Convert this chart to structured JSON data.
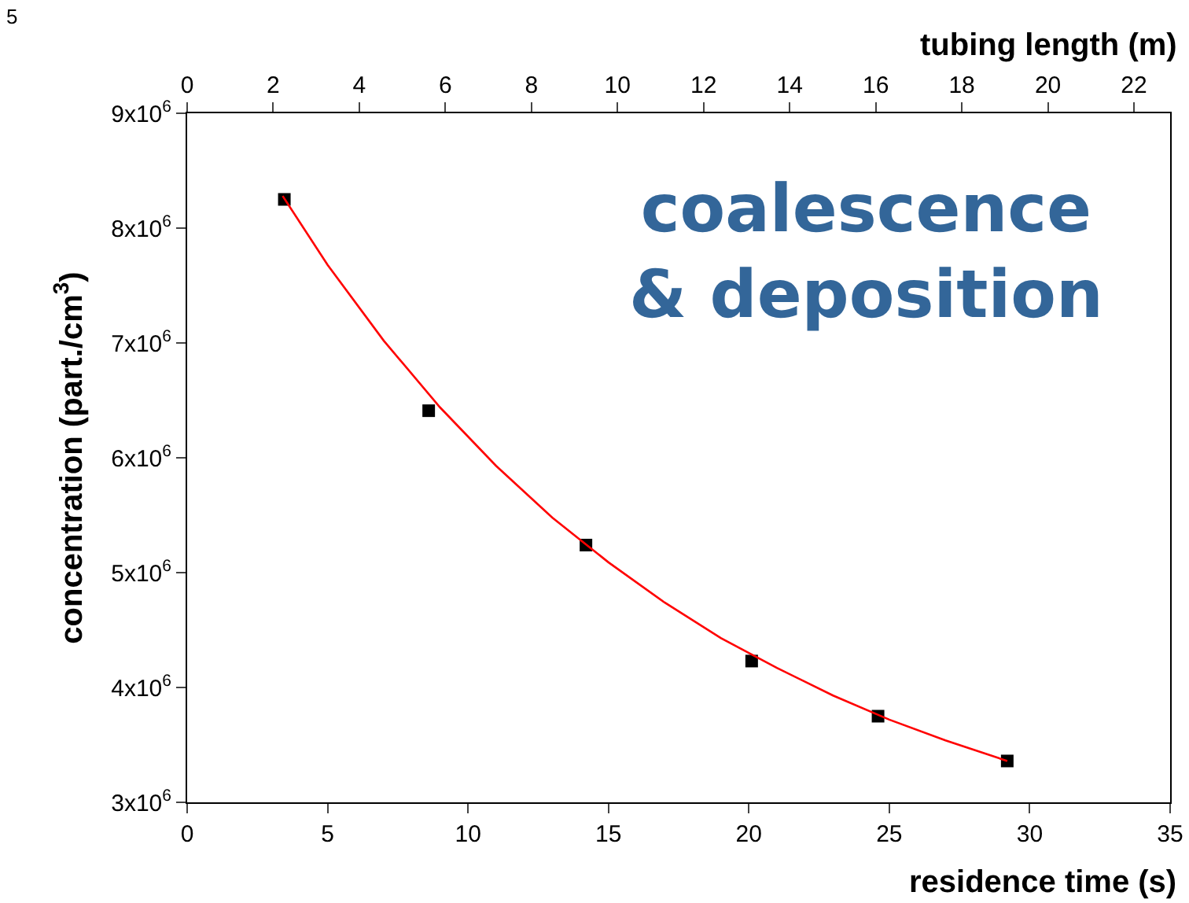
{
  "chart_data": {
    "type": "scatter",
    "xlabel": "residence time (s)",
    "ylabel": "concentration (part./cm$^{3}$)",
    "x2label": "tubing length (m)",
    "xlim": [
      0,
      35
    ],
    "xticks": [
      0,
      5,
      10,
      15,
      20,
      25,
      30,
      35
    ],
    "x2lim": [
      0,
      22.84
    ],
    "x2ticks": [
      0,
      2,
      4,
      6,
      8,
      10,
      12,
      14,
      16,
      18,
      20,
      22
    ],
    "ylim": [
      3000000,
      9000000
    ],
    "yticks": [
      {
        "value": 3000000,
        "label": "3x10$^{6}$"
      },
      {
        "value": 4000000,
        "label": "4x10$^{6}$"
      },
      {
        "value": 5000000,
        "label": "5x10$^{6}$"
      },
      {
        "value": 6000000,
        "label": "6x10$^{6}$"
      },
      {
        "value": 7000000,
        "label": "7x10$^{6}$"
      },
      {
        "value": 8000000,
        "label": "8x10$^{6}$"
      },
      {
        "value": 9000000,
        "label": "9x10$^{6}$"
      }
    ],
    "grid": false,
    "series": [
      {
        "marker": "square",
        "color": "#000000",
        "x": [
          3.46,
          8.6,
          14.2,
          20.1,
          24.6,
          29.2
        ],
        "values": [
          8250000,
          6410000,
          5240000,
          4230000,
          3750000,
          3360000
        ]
      },
      {
        "type": "line",
        "marker": "none",
        "line_style": "solid",
        "color": "#ff0000",
        "x": [
          3.4,
          5,
          7,
          9,
          11,
          13,
          15,
          17,
          19,
          21,
          23,
          25,
          27,
          29.2
        ],
        "values": [
          8280000,
          7680000,
          7020000,
          6440000,
          5930000,
          5480000,
          5090000,
          4740000,
          4430000,
          4170000,
          3930000,
          3720000,
          3540000,
          3360000
        ]
      }
    ],
    "annotations": [
      "coalescence\n& deposition",
      "5"
    ]
  }
}
